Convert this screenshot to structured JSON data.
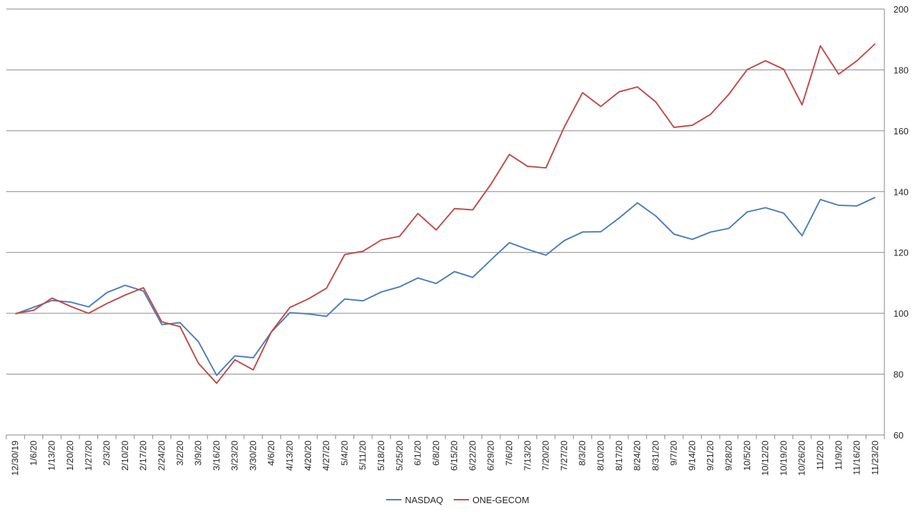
{
  "chart_data": {
    "type": "line",
    "title": "",
    "xlabel": "",
    "ylabel": "",
    "ylim": [
      60,
      200
    ],
    "yticks": [
      60,
      80,
      100,
      120,
      140,
      160,
      180,
      200
    ],
    "y_axis_side": "right",
    "grid": "horizontal",
    "legend_position": "bottom",
    "categories": [
      "12/30/19",
      "1/6/20",
      "1/13/20",
      "1/20/20",
      "1/27/20",
      "2/3/20",
      "2/10/20",
      "2/17/20",
      "2/24/20",
      "3/2/20",
      "3/9/20",
      "3/16/20",
      "3/23/20",
      "3/30/20",
      "4/6/20",
      "4/13/20",
      "4/20/20",
      "4/27/20",
      "5/4/20",
      "5/11/20",
      "5/18/20",
      "5/25/20",
      "6/1/20",
      "6/8/20",
      "6/15/20",
      "6/22/20",
      "6/29/20",
      "7/6/20",
      "7/13/20",
      "7/20/20",
      "7/27/20",
      "8/3/20",
      "8/10/20",
      "8/17/20",
      "8/24/20",
      "8/31/20",
      "9/7/20",
      "9/14/20",
      "9/21/20",
      "9/28/20",
      "10/5/20",
      "10/12/20",
      "10/19/20",
      "10/26/20",
      "11/2/20",
      "11/9/20",
      "11/16/20",
      "11/23/20"
    ],
    "series": [
      {
        "name": "NASDAQ",
        "color": "#4a7ebb",
        "values": [
          99.8,
          102.0,
          104.2,
          103.7,
          102.1,
          106.8,
          109.2,
          107.3,
          96.3,
          96.9,
          90.7,
          79.6,
          86.0,
          85.4,
          93.9,
          100.2,
          99.8,
          99.0,
          104.7,
          104.1,
          107.0,
          108.7,
          111.6,
          109.8,
          113.7,
          111.8,
          117.6,
          123.2,
          121.0,
          119.1,
          123.9,
          126.7,
          126.8,
          131.3,
          136.3,
          132.0,
          126.0,
          124.3,
          126.7,
          127.9,
          133.3,
          134.7,
          132.9,
          125.5,
          137.4,
          135.5,
          135.3,
          138.1
        ]
      },
      {
        "name": "ONE-GECOM",
        "color": "#be4b48",
        "values": [
          99.9,
          101.0,
          105.0,
          102.3,
          100.0,
          103.2,
          106.0,
          108.4,
          97.2,
          95.6,
          83.6,
          77.0,
          84.7,
          81.4,
          94.0,
          101.9,
          104.7,
          108.2,
          119.3,
          120.4,
          124.1,
          125.3,
          132.8,
          127.4,
          134.4,
          134.0,
          142.5,
          152.2,
          148.3,
          147.8,
          161.2,
          172.5,
          168.0,
          172.8,
          174.4,
          169.5,
          161.1,
          161.8,
          165.4,
          172.0,
          180.1,
          183.0,
          180.2,
          168.5,
          187.9,
          178.6,
          183.0,
          188.6
        ]
      }
    ]
  }
}
